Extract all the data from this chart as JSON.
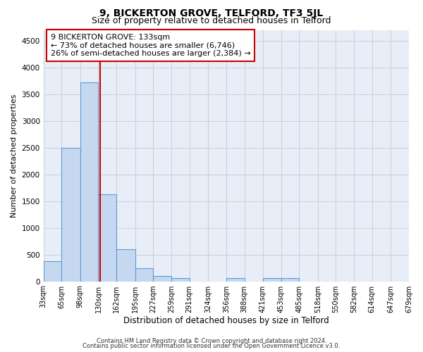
{
  "title": "9, BICKERTON GROVE, TELFORD, TF3 5JL",
  "subtitle": "Size of property relative to detached houses in Telford",
  "xlabel": "Distribution of detached houses by size in Telford",
  "ylabel": "Number of detached properties",
  "bar_edges": [
    33,
    65,
    98,
    130,
    162,
    195,
    227,
    259,
    291,
    324,
    356,
    388,
    421,
    453,
    485,
    518,
    550,
    582,
    614,
    647,
    679
  ],
  "bar_heights": [
    380,
    2500,
    3720,
    1630,
    600,
    240,
    100,
    55,
    0,
    0,
    55,
    0,
    55,
    55,
    0,
    0,
    0,
    0,
    0,
    0
  ],
  "bar_color": "#c5d8f0",
  "bar_edgecolor": "#5b9bd5",
  "property_line_x": 133,
  "property_line_color": "#cc0000",
  "annotation_box_edgecolor": "#cc0000",
  "annotation_line1": "9 BICKERTON GROVE: 133sqm",
  "annotation_line2": "← 73% of detached houses are smaller (6,746)",
  "annotation_line3": "26% of semi-detached houses are larger (2,384) →",
  "ylim": [
    0,
    4700
  ],
  "yticks": [
    0,
    500,
    1000,
    1500,
    2000,
    2500,
    3000,
    3500,
    4000,
    4500
  ],
  "tick_labels": [
    "33sqm",
    "65sqm",
    "98sqm",
    "130sqm",
    "162sqm",
    "195sqm",
    "227sqm",
    "259sqm",
    "291sqm",
    "324sqm",
    "356sqm",
    "388sqm",
    "421sqm",
    "453sqm",
    "485sqm",
    "518sqm",
    "550sqm",
    "582sqm",
    "614sqm",
    "647sqm",
    "679sqm"
  ],
  "footer_line1": "Contains HM Land Registry data © Crown copyright and database right 2024.",
  "footer_line2": "Contains public sector information licensed under the Open Government Licence v3.0.",
  "background_color": "#ffffff",
  "plot_bg_color": "#e8eef7",
  "grid_color": "#c8d0dc",
  "title_fontsize": 10,
  "subtitle_fontsize": 9,
  "xlabel_fontsize": 8.5,
  "ylabel_fontsize": 8,
  "tick_fontsize": 7,
  "annotation_fontsize": 8,
  "footer_fontsize": 6
}
